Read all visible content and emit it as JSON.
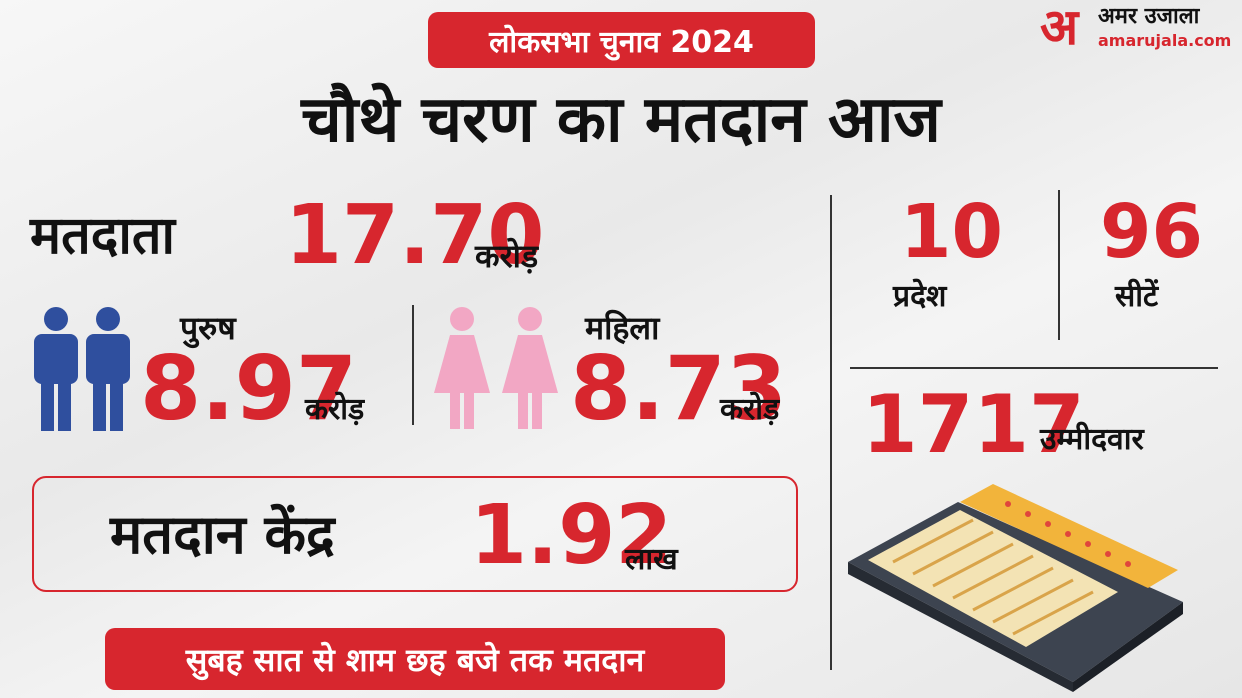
{
  "header": {
    "badge": "लोकसभा चुनाव 2024",
    "title": "चौथे चरण का मतदान आज"
  },
  "logo": {
    "mark": "अ",
    "name": "अमर उजाला",
    "url": "amarujala.com"
  },
  "voters": {
    "label": "मतदाता",
    "value": "17.70",
    "unit": "करोड़"
  },
  "male": {
    "label": "पुरुष",
    "value": "8.97",
    "unit": "करोड़"
  },
  "female": {
    "label": "महिला",
    "value": "8.73",
    "unit": "करोड़"
  },
  "polling_centers": {
    "label": "मतदान केंद्र",
    "value": "1.92",
    "unit": "लाख"
  },
  "timing": "सुबह सात से शाम छह बजे तक मतदान",
  "states": {
    "value": "10",
    "label": "प्रदेश"
  },
  "seats": {
    "value": "96",
    "label": "सीटें"
  },
  "candidates": {
    "value": "1717",
    "label": "उम्मीदवार"
  }
}
